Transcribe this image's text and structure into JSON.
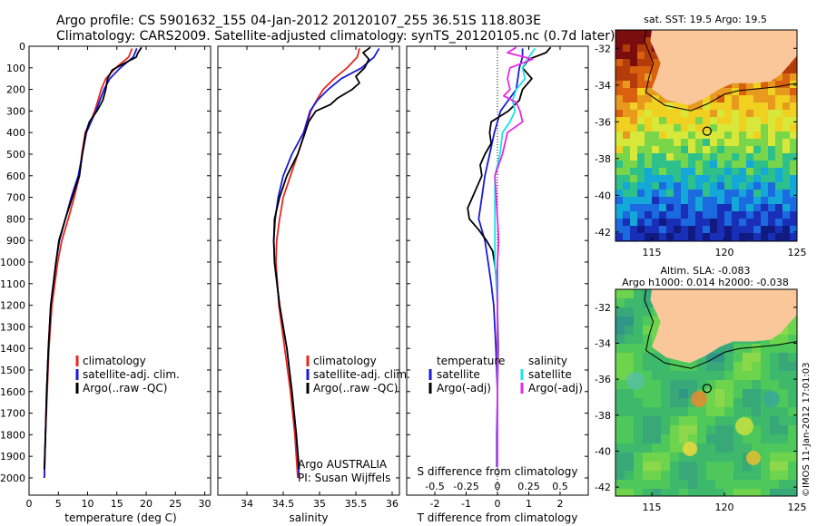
{
  "header": {
    "line1": "Argo profile: CS 5901632_155 04-Jan-2012 20120107_255 36.51S 118.803E",
    "line2": "Climatology: CARS2009. Satellite-adjusted climatology: synTS_20120105.nc (0.7d later)"
  },
  "colors": {
    "clim": "#e8281e",
    "sat": "#1a1ad8",
    "argo": "#000000",
    "sat_s": "#14e6e6",
    "argo_s": "#e628e6",
    "land": "#f9c79a"
  },
  "chart_data": [
    {
      "id": "temperature",
      "type": "line",
      "xlabel": "temperature (deg C)",
      "ylabel": "",
      "xlim": [
        0,
        31
      ],
      "ylim": [
        0,
        2080
      ],
      "x_ticks": [
        0,
        5,
        10,
        15,
        20,
        25,
        30
      ],
      "y_ticks": [
        0,
        100,
        200,
        300,
        400,
        500,
        600,
        700,
        800,
        900,
        1000,
        1100,
        1200,
        1300,
        1400,
        1500,
        1600,
        1700,
        1800,
        1900,
        2000
      ],
      "legend": [
        "climatology",
        "satellite-adj. clim.",
        "Argo(..raw -QC)"
      ],
      "series": [
        {
          "name": "climatology",
          "color": "#e8281e",
          "depth": [
            10,
            50,
            100,
            150,
            200,
            250,
            300,
            350,
            400,
            500,
            600,
            700,
            800,
            900,
            1000,
            1200,
            1400,
            1600,
            1800,
            2000
          ],
          "values": [
            17.6,
            17.0,
            14.8,
            13.1,
            12.3,
            11.8,
            11.2,
            10.5,
            9.6,
            9.0,
            8.6,
            7.7,
            6.7,
            5.6,
            4.9,
            3.9,
            3.4,
            3.1,
            2.8,
            2.6
          ]
        },
        {
          "name": "satellite",
          "color": "#1a1ad8",
          "depth": [
            10,
            50,
            100,
            150,
            200,
            250,
            300,
            350,
            400,
            500,
            600,
            700,
            800,
            900,
            1000,
            1200,
            1400,
            1600,
            1800,
            2000
          ],
          "values": [
            18.4,
            17.8,
            15.6,
            13.8,
            12.8,
            12.1,
            11.4,
            10.6,
            9.8,
            9.1,
            8.4,
            7.2,
            6.2,
            5.2,
            4.6,
            3.7,
            3.3,
            3.0,
            2.8,
            2.6
          ]
        },
        {
          "name": "argo",
          "color": "#000000",
          "depth": [
            5,
            30,
            50,
            80,
            110,
            150,
            200,
            250,
            300,
            350,
            400,
            500,
            600,
            700,
            800,
            900,
            1000,
            1200,
            1400,
            1600,
            1800,
            1960
          ],
          "values": [
            19.2,
            18.6,
            18.3,
            16.2,
            14.2,
            13.4,
            13.1,
            12.6,
            11.6,
            10.3,
            9.7,
            9.1,
            8.6,
            7.4,
            6.2,
            5.1,
            4.6,
            3.7,
            3.3,
            3.0,
            2.8,
            2.6
          ]
        }
      ],
      "annotations": []
    },
    {
      "id": "salinity",
      "type": "line",
      "xlabel": "salinity",
      "ylabel": "",
      "xlim": [
        33.6,
        36.1
      ],
      "ylim": [
        0,
        2080
      ],
      "x_ticks": [
        34,
        34.5,
        35,
        35.5,
        36
      ],
      "legend": [
        "climatology",
        "satellite-adj. clim.",
        "Argo(..raw -QC)"
      ],
      "series": [
        {
          "name": "climatology",
          "color": "#e8281e",
          "depth": [
            10,
            50,
            100,
            150,
            200,
            250,
            300,
            400,
            500,
            600,
            700,
            800,
            900,
            1000,
            1200,
            1400,
            1600,
            1800,
            2000
          ],
          "values": [
            35.55,
            35.52,
            35.38,
            35.2,
            35.05,
            34.96,
            34.88,
            34.8,
            34.7,
            34.6,
            34.5,
            34.45,
            34.41,
            34.4,
            34.44,
            34.52,
            34.6,
            34.66,
            34.7
          ]
        },
        {
          "name": "satellite",
          "color": "#1a1ad8",
          "depth": [
            10,
            50,
            100,
            150,
            200,
            250,
            300,
            400,
            500,
            600,
            700,
            800,
            900,
            1000,
            1200,
            1400,
            1600,
            1800,
            2000
          ],
          "values": [
            35.82,
            35.75,
            35.58,
            35.3,
            35.12,
            34.97,
            34.87,
            34.78,
            34.62,
            34.5,
            34.43,
            34.39,
            34.37,
            34.38,
            34.45,
            34.55,
            34.62,
            34.68,
            34.72
          ]
        },
        {
          "name": "argo",
          "color": "#000000",
          "depth": [
            5,
            30,
            60,
            100,
            140,
            170,
            200,
            240,
            270,
            300,
            350,
            400,
            500,
            600,
            700,
            800,
            900,
            1000,
            1200,
            1400,
            1600,
            1800,
            1960
          ],
          "values": [
            35.7,
            35.6,
            35.68,
            35.62,
            35.5,
            35.55,
            35.45,
            35.25,
            35.15,
            34.95,
            34.85,
            34.8,
            34.7,
            34.55,
            34.45,
            34.38,
            34.37,
            34.38,
            34.45,
            34.55,
            34.62,
            34.68,
            34.72
          ]
        }
      ],
      "annotations": [
        "Argo AUSTRALIA",
        "PI: Susan Wijffels"
      ]
    },
    {
      "id": "differences",
      "type": "line",
      "xlabel": "T difference from climatology",
      "xlabel2": "S difference from climatology",
      "xlim": [
        -2.9,
        2.9
      ],
      "ylim": [
        0,
        2080
      ],
      "x_ticks": [
        -2,
        -1,
        0,
        1,
        2
      ],
      "x_ticks_s": [
        -0.5,
        -0.25,
        0,
        0.25,
        0.5
      ],
      "legend_t_title": "temperature",
      "legend_s_title": "salinity",
      "legend": [
        "satellite",
        "Argo(-adj)",
        "satellite",
        "Argo(-adj)"
      ],
      "series": [
        {
          "name": "T satellite",
          "color": "#1a1ad8",
          "depth": [
            10,
            50,
            100,
            200,
            300,
            400,
            500,
            600,
            700,
            800,
            900,
            1000,
            1100,
            1200,
            1400,
            1600,
            1800,
            1950
          ],
          "values": [
            0.8,
            0.8,
            0.7,
            0.6,
            0.1,
            -0.1,
            -0.25,
            -0.4,
            -0.5,
            -0.6,
            -0.4,
            -0.3,
            -0.2,
            -0.12,
            -0.05,
            0,
            -0.02,
            -0.02
          ]
        },
        {
          "name": "T argo",
          "color": "#000000",
          "depth": [
            5,
            30,
            60,
            100,
            150,
            200,
            250,
            300,
            350,
            400,
            450,
            500,
            550,
            600,
            650,
            700,
            750,
            800,
            850,
            900,
            950,
            1000,
            1050,
            1100,
            1200,
            1400,
            1600,
            1800,
            1950
          ],
          "values": [
            1.7,
            1.55,
            1.0,
            0.8,
            1.1,
            0.8,
            0.7,
            0.35,
            -0.2,
            -0.25,
            -0.2,
            -0.4,
            -0.55,
            -0.5,
            -0.65,
            -0.8,
            -0.95,
            -0.9,
            -0.6,
            -0.35,
            -0.15,
            -0.1,
            -0.05,
            -0.02,
            0,
            0.02,
            0,
            0,
            0
          ]
        },
        {
          "name": "S satellite",
          "color": "#14e6e6",
          "depth": [
            10,
            50,
            100,
            150,
            200,
            250,
            300,
            350,
            400,
            500,
            600,
            700,
            800,
            900,
            1000,
            1200,
            1400,
            1600,
            1800,
            1950
          ],
          "values": [
            0.3,
            0.25,
            0.2,
            0.22,
            0.15,
            0.12,
            0.14,
            0.1,
            0.04,
            0.02,
            -0.02,
            -0.02,
            -0.02,
            -0.02,
            -0.02,
            0,
            0,
            0,
            0,
            0
          ]
        },
        {
          "name": "S argo",
          "color": "#e628e6",
          "depth": [
            5,
            30,
            60,
            100,
            150,
            200,
            230,
            260,
            300,
            350,
            400,
            500,
            600,
            700,
            800,
            900,
            1000,
            1200,
            1400,
            1600,
            1800,
            1950
          ],
          "values": [
            0.15,
            0.08,
            0.28,
            0.1,
            0.08,
            0.1,
            0.05,
            0.15,
            0.18,
            0.2,
            0.08,
            0.04,
            -0.02,
            -0.01,
            0,
            0.01,
            0,
            0,
            0,
            0,
            0,
            0
          ]
        }
      ],
      "annotations": []
    }
  ],
  "maps": {
    "sst": {
      "title": "sat. SST: 19.5 Argo: 19.5",
      "y_ticks": [
        "-32",
        "-34",
        "-36",
        "-38",
        "-40",
        "-42"
      ],
      "x_ticks": [
        "115",
        "120",
        "125"
      ]
    },
    "sla": {
      "title1": "Altim. SLA: -0.083",
      "title2": "Argo h1000: 0.014 h2000: -0.038",
      "y_ticks": [
        "-32",
        "-34",
        "-36",
        "-38",
        "-40",
        "-42"
      ],
      "x_ticks": [
        "115",
        "120",
        "125"
      ]
    }
  },
  "footer": {
    "credit": "©IMOS 11-Jan-2012 17:01:03"
  }
}
